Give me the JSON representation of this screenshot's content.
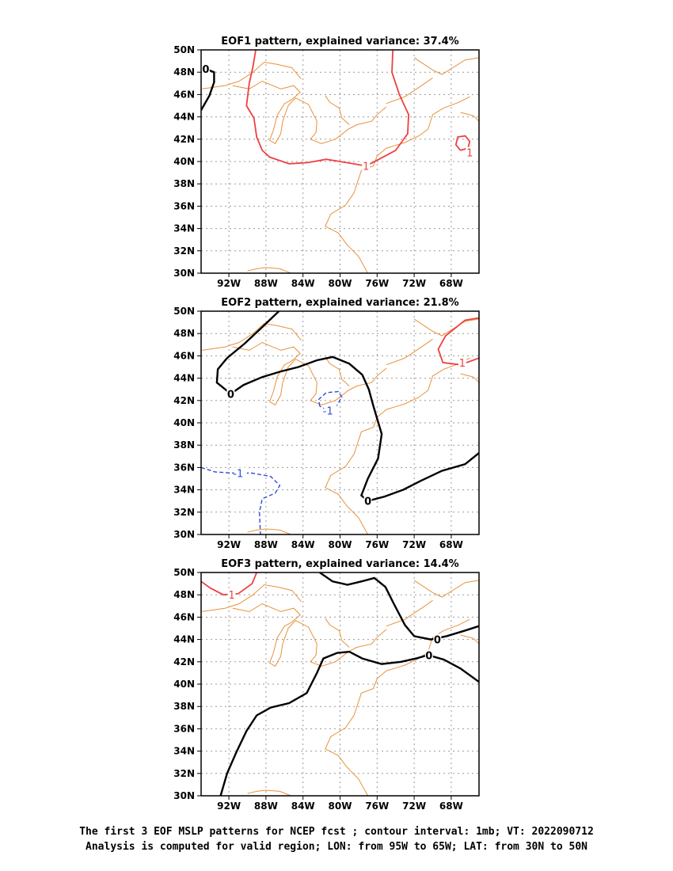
{
  "panels": [
    {
      "title": "EOF1 pattern, explained variance: 37.4%",
      "labels": {
        "zero": [
          "0"
        ],
        "pos": [
          "1",
          "1"
        ],
        "neg": []
      }
    },
    {
      "title": "EOF2 pattern, explained variance: 21.8%",
      "labels": {
        "zero": [
          "0",
          "0"
        ],
        "pos": [
          "1"
        ],
        "neg": [
          "-1",
          "-1"
        ]
      }
    },
    {
      "title": "EOF3 pattern, explained variance: 14.4%",
      "labels": {
        "zero": [
          "0",
          "0"
        ],
        "pos": [
          "1"
        ],
        "neg": []
      }
    }
  ],
  "lat_labels": [
    "50N",
    "48N",
    "46N",
    "44N",
    "42N",
    "40N",
    "38N",
    "36N",
    "34N",
    "32N",
    "30N"
  ],
  "lon_labels": [
    "92W",
    "88W",
    "84W",
    "80W",
    "76W",
    "72W",
    "68W"
  ],
  "caption": {
    "line1": "The first 3 EOF MSLP patterns for NCEP fcst ; contour interval: 1mb; VT: 2022090712",
    "line2": "Analysis is computed for valid region; LON: from 95W to 65W; LAT: from 30N to 50N"
  },
  "colors": {
    "coastline": "#e8913a",
    "positive": "#ee4040",
    "negative": "#2f4fe0",
    "zero": "#000000"
  }
}
